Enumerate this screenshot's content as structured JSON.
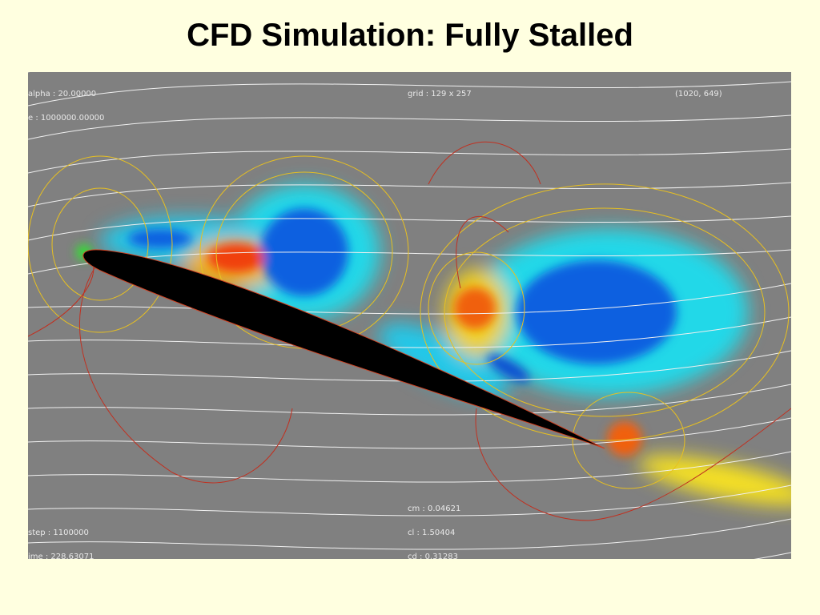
{
  "title": "CFD Simulation: Fully Stalled",
  "overlay": {
    "alpha": "alpha : 20.00000",
    "re": "e : 1000000.00000",
    "grid": "grid : 129 x 257",
    "cursor": "(1020, 649)",
    "step": "step : 1100000",
    "time": "ime : 228.63071",
    "cm": "cm : 0.04621",
    "cl": "cl : 1.50404",
    "cd": "cd : 0.31283"
  }
}
